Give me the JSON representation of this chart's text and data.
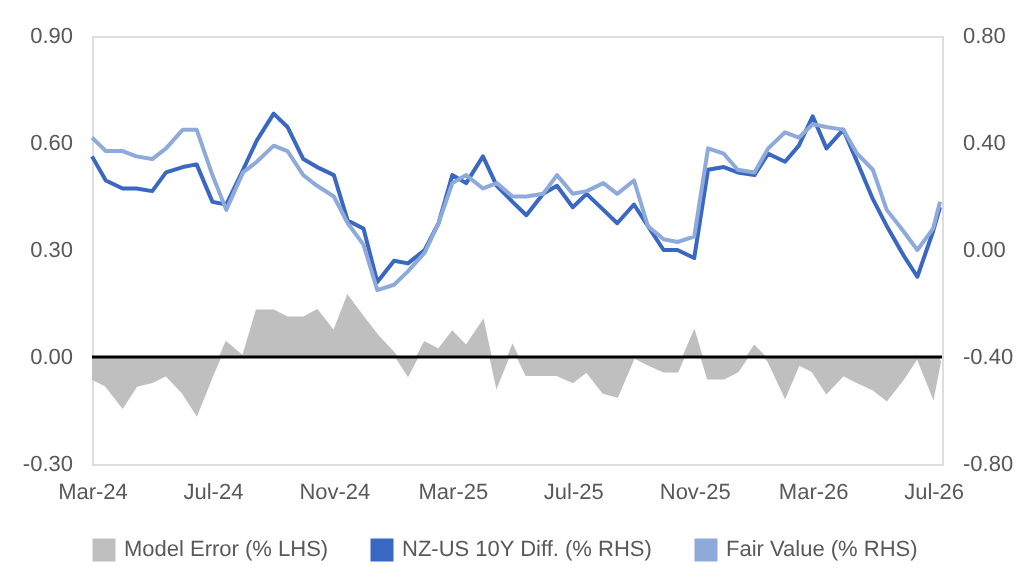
{
  "chart_data": {
    "type": "line",
    "x": [
      "2024-03-01",
      "2024-03-15",
      "2024-04-01",
      "2024-04-15",
      "2024-05-01",
      "2024-05-15",
      "2024-06-01",
      "2024-06-15",
      "2024-07-01",
      "2024-07-15",
      "2024-08-01",
      "2024-08-15",
      "2024-09-01",
      "2024-09-15",
      "2024-10-01",
      "2024-10-15",
      "2024-11-01",
      "2024-11-15",
      "2024-12-01",
      "2024-12-15",
      "2025-01-01",
      "2025-01-15",
      "2025-02-01",
      "2025-02-15",
      "2025-03-01",
      "2025-03-15",
      "2025-04-01",
      "2025-04-15",
      "2025-05-01",
      "2025-05-15",
      "2025-06-01",
      "2025-06-15",
      "2025-07-01",
      "2025-07-15",
      "2025-08-01",
      "2025-08-15",
      "2025-09-01",
      "2025-09-15",
      "2025-10-01",
      "2025-10-15",
      "2025-11-01",
      "2025-11-15",
      "2025-12-01",
      "2025-12-15",
      "2026-01-01",
      "2026-01-15",
      "2026-02-01",
      "2026-02-15",
      "2026-03-01",
      "2026-03-15",
      "2026-04-01",
      "2026-04-15",
      "2026-05-01",
      "2026-05-15",
      "2026-06-01",
      "2026-06-15",
      "2026-07-01",
      "2026-07-08"
    ],
    "series": [
      {
        "name": "Model Error (% LHS)",
        "type": "area",
        "color": "#bfbfbf",
        "values": [
          -0.06,
          -0.08,
          -0.14,
          -0.08,
          -0.07,
          -0.05,
          -0.1,
          -0.16,
          -0.05,
          0.04,
          0.0,
          0.13,
          0.13,
          0.11,
          0.11,
          0.13,
          0.07,
          0.17,
          0.11,
          0.06,
          0.01,
          -0.05,
          0.04,
          0.02,
          0.07,
          0.03,
          0.1,
          -0.08,
          0.03,
          -0.05,
          -0.05,
          -0.05,
          -0.07,
          -0.04,
          -0.1,
          -0.11,
          0.0,
          -0.02,
          -0.04,
          -0.04,
          0.07,
          -0.06,
          -0.06,
          -0.04,
          0.03,
          -0.01,
          -0.11,
          -0.02,
          -0.04,
          -0.1,
          -0.05,
          -0.07,
          -0.09,
          -0.12,
          -0.06,
          0.0,
          -0.11,
          -0.01
        ]
      },
      {
        "name": "NZ-US 10Y Diff. (% RHS)",
        "type": "line",
        "axis": "y2",
        "color": "#3a67c2",
        "values": [
          0.35,
          0.26,
          0.23,
          0.23,
          0.22,
          0.29,
          0.31,
          0.32,
          0.18,
          0.17,
          0.3,
          0.41,
          0.51,
          0.46,
          0.34,
          0.31,
          0.28,
          0.11,
          0.08,
          -0.12,
          -0.04,
          -0.05,
          0.0,
          0.1,
          0.28,
          0.25,
          0.35,
          0.24,
          0.18,
          0.13,
          0.21,
          0.24,
          0.16,
          0.21,
          0.15,
          0.1,
          0.17,
          0.09,
          0.0,
          0.0,
          -0.03,
          0.3,
          0.31,
          0.29,
          0.28,
          0.36,
          0.33,
          0.39,
          0.5,
          0.38,
          0.45,
          0.33,
          0.19,
          0.09,
          -0.02,
          -0.1,
          0.07,
          0.16
        ]
      },
      {
        "name": "Fair Value (% RHS)",
        "type": "line",
        "axis": "y2",
        "color": "#8eaadb",
        "values": [
          0.42,
          0.37,
          0.37,
          0.35,
          0.34,
          0.38,
          0.45,
          0.45,
          0.28,
          0.15,
          0.29,
          0.33,
          0.39,
          0.37,
          0.28,
          0.24,
          0.2,
          0.1,
          0.02,
          -0.15,
          -0.13,
          -0.08,
          -0.01,
          0.1,
          0.25,
          0.28,
          0.23,
          0.25,
          0.2,
          0.2,
          0.21,
          0.28,
          0.21,
          0.22,
          0.25,
          0.21,
          0.26,
          0.09,
          0.04,
          0.03,
          0.05,
          0.38,
          0.36,
          0.3,
          0.29,
          0.38,
          0.44,
          0.42,
          0.47,
          0.46,
          0.45,
          0.36,
          0.3,
          0.15,
          0.07,
          0.0,
          0.08,
          0.18
        ]
      }
    ],
    "xlim": [
      "2024-03-01",
      "2026-07-10"
    ],
    "xticks": [
      {
        "value": "2024-03-01",
        "label": "Mar-24"
      },
      {
        "value": "2024-07-01",
        "label": "Jul-24"
      },
      {
        "value": "2024-11-01",
        "label": "Nov-24"
      },
      {
        "value": "2025-03-01",
        "label": "Mar-25"
      },
      {
        "value": "2025-07-01",
        "label": "Jul-25"
      },
      {
        "value": "2025-11-01",
        "label": "Nov-25"
      },
      {
        "value": "2026-03-01",
        "label": "Mar-26"
      },
      {
        "value": "2026-07-01",
        "label": "Jul-26"
      }
    ],
    "ylim": [
      -0.3,
      0.9
    ],
    "yticks": [
      {
        "value": -0.3,
        "label": "-0.30"
      },
      {
        "value": 0,
        "label": "0.00"
      },
      {
        "value": 0.3,
        "label": "0.30"
      },
      {
        "value": 0.6,
        "label": "0.60"
      },
      {
        "value": 0.9,
        "label": "0.90"
      }
    ],
    "y2lim": [
      -0.8,
      0.8
    ],
    "y2ticks": [
      {
        "value": -0.8,
        "label": "-0.80"
      },
      {
        "value": -0.4,
        "label": "-0.40"
      },
      {
        "value": 0,
        "label": "0.00"
      },
      {
        "value": 0.4,
        "label": "0.40"
      },
      {
        "value": 0.8,
        "label": "0.80"
      }
    ],
    "ref_lines": [
      {
        "axis": "y",
        "value": 0,
        "color": "#000000"
      }
    ],
    "grid": false,
    "legend": "bottom"
  }
}
